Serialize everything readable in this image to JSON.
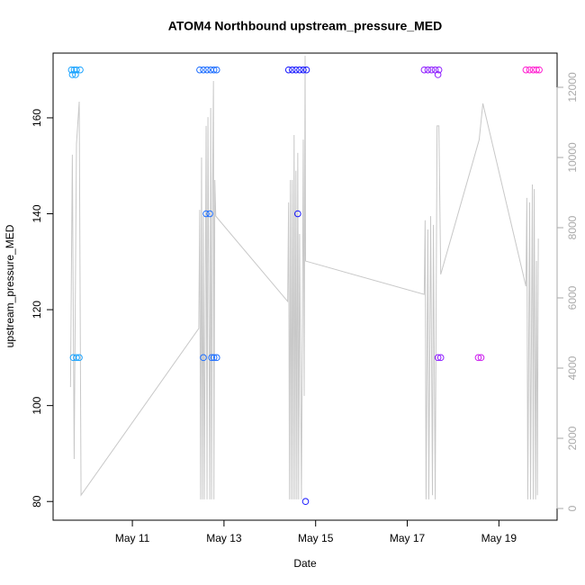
{
  "chart_data": {
    "type": "scatter",
    "title": "ATOM4 Northbound upstream_pressure_MED",
    "xlabel": "Date",
    "ylabel": "upstream_pressure_MED",
    "xlim": [
      9.27,
      20.27
    ],
    "ylim": [
      76.1,
      173.5
    ],
    "y2lim": [
      -333,
      12974
    ],
    "xticks": [
      {
        "value": 11,
        "label": "May 11"
      },
      {
        "value": 13,
        "label": "May 13"
      },
      {
        "value": 15,
        "label": "May 15"
      },
      {
        "value": 17,
        "label": "May 17"
      },
      {
        "value": 19,
        "label": "May 19"
      }
    ],
    "yticks": [
      80,
      100,
      120,
      140,
      160
    ],
    "y2ticks": [
      0,
      2000,
      4000,
      6000,
      8000,
      10000,
      12000
    ],
    "series": [
      {
        "type": "scatter",
        "color": "#1aa3ff",
        "x": [
          9.67,
          9.73,
          9.78,
          9.86,
          9.69,
          9.76,
          9.71,
          9.78,
          9.84
        ],
        "values": [
          170,
          170,
          170,
          170,
          169,
          169,
          110,
          110,
          110
        ]
      },
      {
        "type": "scatter",
        "color": "#1f6fff",
        "x": [
          12.47,
          12.55,
          12.63,
          12.71,
          12.78,
          12.84,
          12.61,
          12.69,
          12.55,
          12.73,
          12.78,
          12.84
        ],
        "values": [
          170,
          170,
          170,
          170,
          170,
          170,
          140,
          140,
          110,
          110,
          110,
          110
        ]
      },
      {
        "type": "scatter",
        "color": "#1a1aff",
        "x": [
          14.41,
          14.49,
          14.57,
          14.65,
          14.73,
          14.8,
          14.61,
          14.78
        ],
        "values": [
          170,
          170,
          170,
          170,
          170,
          170,
          140,
          80
        ]
      },
      {
        "type": "scatter",
        "color": "#8f1fff",
        "x": [
          17.37,
          17.45,
          17.53,
          17.61,
          17.69,
          17.67,
          17.67,
          17.73
        ],
        "values": [
          170,
          170,
          170,
          170,
          170,
          169,
          110,
          110
        ]
      },
      {
        "type": "scatter",
        "color": "#cc1fee",
        "x": [
          18.55,
          18.61
        ],
        "values": [
          110,
          110
        ]
      },
      {
        "type": "scatter",
        "color": "#ff1fd0",
        "x": [
          19.59,
          19.67,
          19.75,
          19.82,
          19.88
        ],
        "values": [
          170,
          170,
          170,
          170,
          170
        ]
      },
      {
        "type": "line",
        "axis": "y2",
        "color": "#c8c8c8",
        "x": [
          9.65,
          9.69,
          9.73,
          9.78,
          9.84,
          9.88,
          12.45,
          12.47,
          12.49,
          12.51,
          12.53,
          12.55,
          12.57,
          12.61,
          12.63,
          12.65,
          12.69,
          12.71,
          12.73,
          12.75,
          12.77,
          12.78,
          12.8,
          12.82,
          14.39,
          14.41,
          14.43,
          14.45,
          14.47,
          14.49,
          14.51,
          14.53,
          14.55,
          14.57,
          14.59,
          14.61,
          14.63,
          14.65,
          14.69,
          14.73,
          14.75,
          14.77,
          14.78,
          17.37,
          17.39,
          17.41,
          17.45,
          17.47,
          17.51,
          17.55,
          17.57,
          17.61,
          17.65,
          17.69,
          17.73,
          18.57,
          18.65,
          19.59,
          19.61,
          19.63,
          19.67,
          19.69,
          19.73,
          19.75,
          19.77,
          19.8,
          19.82,
          19.84,
          19.86
        ],
        "values": [
          3460,
          10080,
          1410,
          10380,
          11590,
          380,
          5130,
          8510,
          260,
          10000,
          260,
          8330,
          260,
          10900,
          260,
          11150,
          260,
          11410,
          260,
          8970,
          12180,
          260,
          9360,
          8330,
          5900,
          8720,
          260,
          9360,
          260,
          9360,
          260,
          10640,
          260,
          9620,
          260,
          10130,
          260,
          7820,
          260,
          10510,
          3210,
          12900,
          7050,
          6100,
          8210,
          260,
          7950,
          260,
          8330,
          380,
          8080,
          260,
          10900,
          10900,
          6670,
          10510,
          11540,
          6330,
          8850,
          260,
          8720,
          260,
          9230,
          260,
          9100,
          260,
          7050,
          380,
          7690
        ]
      }
    ]
  }
}
